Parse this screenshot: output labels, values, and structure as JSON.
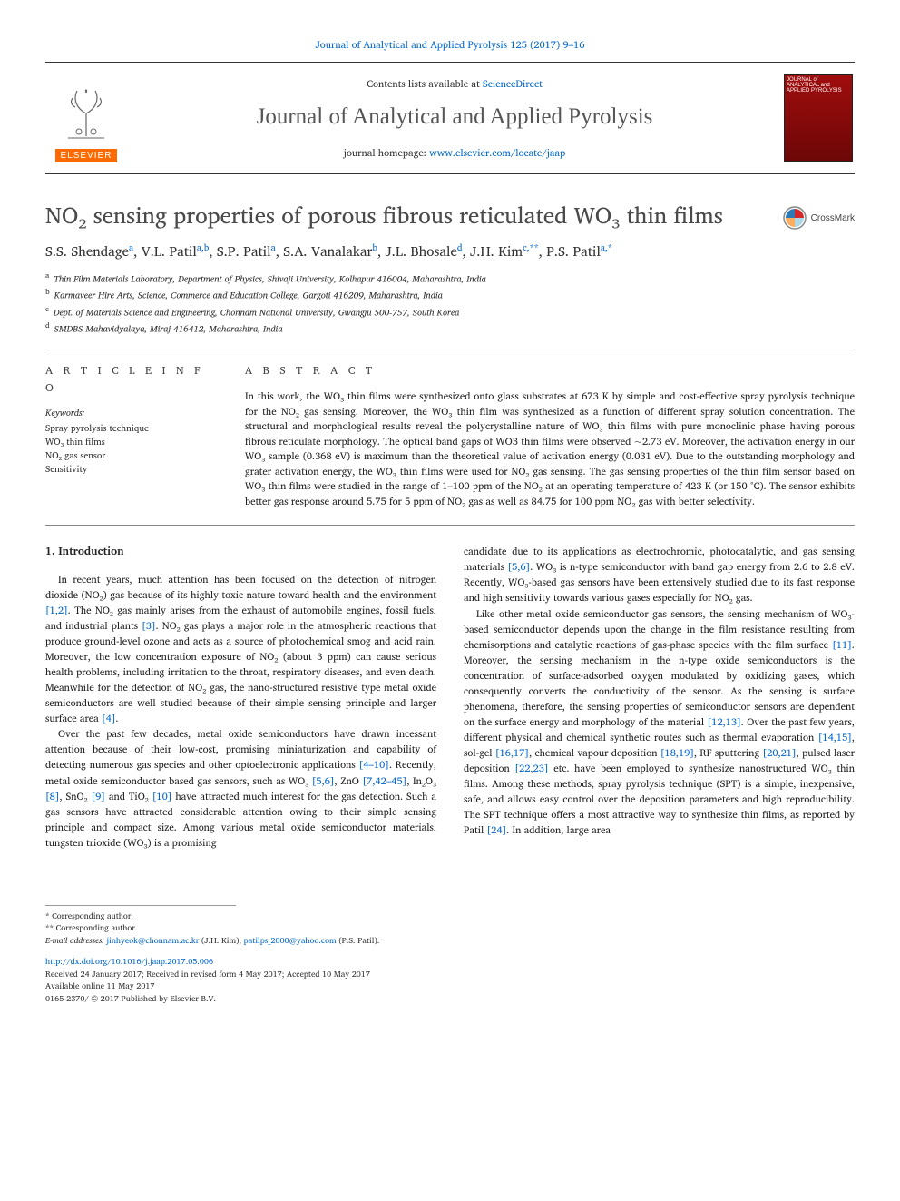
{
  "top_citation": "Journal of Analytical and Applied Pyrolysis 125 (2017) 9–16",
  "header": {
    "contents_prefix": "Contents lists available at ",
    "contents_link": "ScienceDirect",
    "journal_title": "Journal of Analytical and Applied Pyrolysis",
    "homepage_prefix": "journal homepage: ",
    "homepage_link": "www.elsevier.com/locate/jaap",
    "publisher_logo_label": "ELSEVIER",
    "cover_text": "JOURNAL of ANALYTICAL and APPLIED PYROLYSIS"
  },
  "article": {
    "title": "NO₂ sensing properties of porous fibrous reticulated WO₃ thin films",
    "crossmark_label": "CrossMark",
    "authors_html": "S.S. Shendage<sup class='aff'>a</sup>, V.L. Patil<sup class='aff'>a,b</sup>, S.P. Patil<sup class='aff'>a</sup>, S.A. Vanalakar<sup class='aff'>b</sup>, J.L. Bhosale<sup class='aff'>d</sup>, J.H. Kim<sup class='aff'>c,**</sup>, P.S. Patil<sup class='aff'>a,*</sup>",
    "affiliations": [
      {
        "sup": "a",
        "text": "Thin Film Materials Laboratory, Department of Physics, Shivaji University, Kolhapur 416004, Maharashtra, India"
      },
      {
        "sup": "b",
        "text": "Karmaveer Hire Arts, Science, Commerce and Education College, Gargoti 416209, Maharashtra, India"
      },
      {
        "sup": "c",
        "text": "Dept. of Materials Science and Engineering, Chonnam National University, Gwangju 500-757, South Korea"
      },
      {
        "sup": "d",
        "text": "SMDBS Mahavidyalaya, Miraj 416412, Maharashtra, India"
      }
    ]
  },
  "info": {
    "section_label": "A R T I C L E  I N F O",
    "keywords_label": "Keywords:",
    "keywords": [
      "Spray pyrolysis technique",
      "WO₃ thin films",
      "NO₂ gas sensor",
      "Sensitivity"
    ]
  },
  "abstract": {
    "section_label": "A B S T R A C T",
    "text": "In this work, the WO₃ thin films were synthesized onto glass substrates at 673 K by simple and cost-effective spray pyrolysis technique for the NO₂ gas sensing. Moreover, the WO₃ thin film was synthesized as a function of different spray solution concentration. The structural and morphological results reveal the polycrystalline nature of WO₃ thin films with pure monoclinic phase having porous fibrous reticulate morphology. The optical band gaps of WO3 thin films were observed ~2.73 eV. Moreover, the activation energy in our WO₃ sample (0.368 eV) is maximum than the theoretical value of activation energy (0.031 eV). Due to the outstanding morphology and grater activation energy, the WO₃ thin films were used for NO₂ gas sensing. The gas sensing properties of the thin film sensor based on WO₃ thin films were studied in the range of 1–100 ppm of the NO₂ at an operating temperature of 423 K (or 150 °C). The sensor exhibits better gas response around 5.75 for 5 ppm of NO₂ gas as well as 84.75 for 100 ppm NO₂ gas with better selectivity."
  },
  "body": {
    "heading": "1. Introduction",
    "left_paragraphs": [
      "In recent years, much attention has been focused on the detection of nitrogen dioxide (NO₂) gas because of its highly toxic nature toward health and the environment <a href='#' data-name='ref-link' data-interactable='true'>[1,2]</a>. The NO₂ gas mainly arises from the exhaust of automobile engines, fossil fuels, and industrial plants <a href='#' data-name='ref-link' data-interactable='true'>[3]</a>. NO₂ gas plays a major role in the atmospheric reactions that produce ground-level ozone and acts as a source of photochemical smog and acid rain. Moreover, the low concentration exposure of NO₂ (about 3 ppm) can cause serious health problems, including irritation to the throat, respiratory diseases, and even death. Meanwhile for the detection of NO₂ gas, the nano-structured resistive type metal oxide semiconductors are well studied because of their simple sensing principle and larger surface area <a href='#' data-name='ref-link' data-interactable='true'>[4]</a>.",
      "Over the past few decades, metal oxide semiconductors have drawn incessant attention because of their low-cost, promising miniaturization and capability of detecting numerous gas species and other optoelectronic applications <a href='#' data-name='ref-link' data-interactable='true'>[4–10]</a>. Recently, metal oxide semiconductor based gas sensors, such as WO₃ <a href='#' data-name='ref-link' data-interactable='true'>[5,6]</a>, ZnO <a href='#' data-name='ref-link' data-interactable='true'>[7,42–45]</a>, In₂O₃ <a href='#' data-name='ref-link' data-interactable='true'>[8]</a>, SnO₂ <a href='#' data-name='ref-link' data-interactable='true'>[9]</a> and TiO₂ <a href='#' data-name='ref-link' data-interactable='true'>[10]</a> have attracted much interest for the gas detection. Such a gas sensors have attracted considerable attention owing to their simple sensing principle and compact size. Among various metal oxide semiconductor materials, tungsten trioxide (WO₃) is a promising"
    ],
    "right_paragraphs": [
      "candidate due to its applications as electrochromic, photocatalytic, and gas sensing materials <a href='#' data-name='ref-link' data-interactable='true'>[5,6]</a>. WO₃ is n-type semiconductor with band gap energy from 2.6 to 2.8 eV. Recently, WO₃-based gas sensors have been extensively studied due to its fast response and high sensitivity towards various gases especially for NO₂ gas.",
      "Like other metal oxide semiconductor gas sensors, the sensing mechanism of WO₃-based semiconductor depends upon the change in the film resistance resulting from chemisorptions and catalytic reactions of gas-phase species with the film surface <a href='#' data-name='ref-link' data-interactable='true'>[11]</a>. Moreover, the sensing mechanism in the n-type oxide semiconductors is the concentration of surface-adsorbed oxygen modulated by oxidizing gases, which consequently converts the conductivity of the sensor. As the sensing is surface phenomena, therefore, the sensing properties of semiconductor sensors are dependent on the surface energy and morphology of the material <a href='#' data-name='ref-link' data-interactable='true'>[12,13]</a>. Over the past few years, different physical and chemical synthetic routes such as thermal evaporation <a href='#' data-name='ref-link' data-interactable='true'>[14,15]</a>, sol-gel <a href='#' data-name='ref-link' data-interactable='true'>[16,17]</a>, chemical vapour deposition <a href='#' data-name='ref-link' data-interactable='true'>[18,19]</a>, RF sputtering <a href='#' data-name='ref-link' data-interactable='true'>[20,21]</a>, pulsed laser deposition <a href='#' data-name='ref-link' data-interactable='true'>[22,23]</a> etc. have been employed to synthesize nanostructured WO₃ thin films. Among these methods, spray pyrolysis technique (SPT) is a simple, inexpensive, safe, and allows easy control over the deposition parameters and high reproducibility. The SPT technique offers a most attractive way to synthesize thin films, as reported by Patil <a href='#' data-name='ref-link' data-interactable='true'>[24]</a>. In addition, large area"
    ]
  },
  "footnotes": {
    "lines": [
      "* Corresponding author.",
      "** Corresponding author."
    ],
    "email_label": "E-mail addresses:",
    "emails": [
      {
        "addr": "jinhyeok@chonnam.ac.kr",
        "who": "(J.H. Kim),"
      },
      {
        "addr": "patilps_2000@yahoo.com",
        "who": "(P.S. Patil)."
      }
    ]
  },
  "bottom": {
    "doi": "http://dx.doi.org/10.1016/j.jaap.2017.05.006",
    "received": "Received 24 January 2017; Received in revised form 4 May 2017; Accepted 10 May 2017",
    "available": "Available online 11 May 2017",
    "copyright": "0165-2370/ © 2017 Published by Elsevier B.V."
  },
  "styling": {
    "link_color": "#0066cc",
    "text_color": "#222222",
    "title_color": "#4a4a4a",
    "rule_color": "#999999",
    "publisher_bg": "#ff6a00",
    "body_fontsize_pt": 11,
    "title_fontsize_pt": 25,
    "abstract_fontsize_pt": 11,
    "keywords_fontsize_pt": 10
  }
}
